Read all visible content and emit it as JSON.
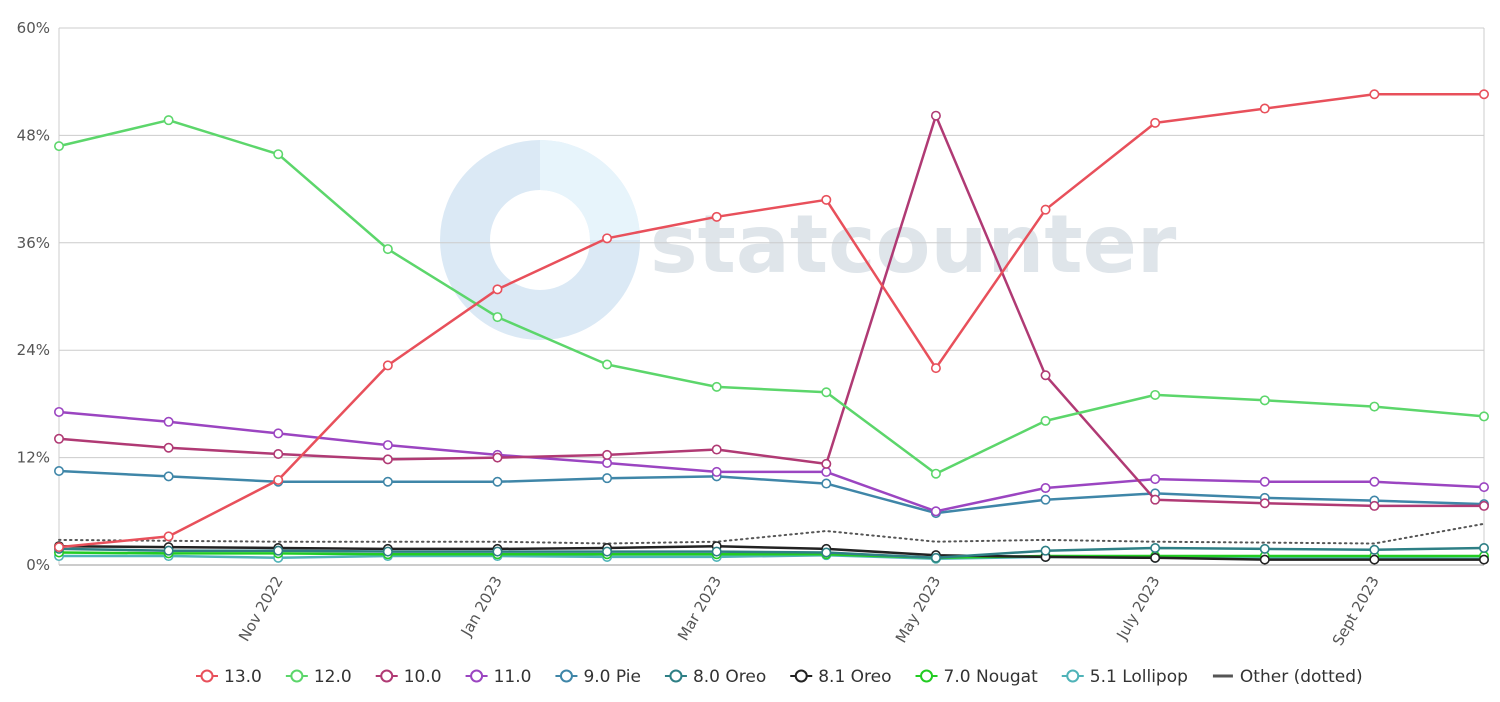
{
  "chart_data": {
    "type": "line",
    "title": "",
    "xlabel": "",
    "ylabel": "",
    "watermark": "statcounter",
    "ylim": [
      0,
      60
    ],
    "y_ticks": [
      "0%",
      "12%",
      "24%",
      "36%",
      "48%",
      "60%"
    ],
    "x": [
      "Sep 2022",
      "Oct 2022",
      "Nov 2022",
      "Dec 2022",
      "Jan 2023",
      "Feb 2023",
      "Mar 2023",
      "Apr 2023",
      "May 2023",
      "Jun 2023",
      "July 2023",
      "Aug 2023",
      "Sept 2023",
      "Oct 2023"
    ],
    "x_tick_labels": [
      {
        "index": 2,
        "label": "Nov 2022"
      },
      {
        "index": 4,
        "label": "Jan 2023"
      },
      {
        "index": 6,
        "label": "Mar 2023"
      },
      {
        "index": 8,
        "label": "May 2023"
      },
      {
        "index": 10,
        "label": "July 2023"
      },
      {
        "index": 12,
        "label": "Sept 2023"
      }
    ],
    "legend_position": "bottom",
    "grid": true,
    "series": [
      {
        "name": "13.0",
        "color": "#e8505b",
        "dotted": false,
        "values": [
          2.0,
          3.2,
          9.5,
          22.3,
          30.8,
          36.5,
          38.9,
          40.8,
          22.0,
          39.7,
          49.4,
          51.0,
          52.6,
          52.6
        ]
      },
      {
        "name": "12.0",
        "color": "#5cd66b",
        "dotted": false,
        "values": [
          46.8,
          49.7,
          45.9,
          35.3,
          27.7,
          22.4,
          19.9,
          19.3,
          10.2,
          16.1,
          19.0,
          18.4,
          17.7,
          16.6
        ]
      },
      {
        "name": "10.0",
        "color": "#b03a74",
        "dotted": false,
        "values": [
          14.1,
          13.1,
          12.4,
          11.8,
          12.0,
          12.3,
          12.9,
          11.3,
          50.2,
          21.2,
          7.3,
          6.9,
          6.6,
          6.6
        ]
      },
      {
        "name": "11.0",
        "color": "#9b45c1",
        "dotted": false,
        "values": [
          17.1,
          16.0,
          14.7,
          13.4,
          12.3,
          11.4,
          10.4,
          10.4,
          6.0,
          8.6,
          9.6,
          9.3,
          9.3,
          8.7
        ]
      },
      {
        "name": "9.0 Pie",
        "color": "#3f86a8",
        "dotted": false,
        "values": [
          10.5,
          9.9,
          9.3,
          9.3,
          9.3,
          9.7,
          9.9,
          9.1,
          5.8,
          7.3,
          8.0,
          7.5,
          7.2,
          6.8
        ]
      },
      {
        "name": "8.0 Oreo",
        "color": "#2e7f85",
        "dotted": false,
        "values": [
          1.8,
          1.6,
          1.6,
          1.5,
          1.5,
          1.5,
          1.5,
          1.4,
          0.8,
          1.6,
          1.9,
          1.8,
          1.7,
          1.9
        ]
      },
      {
        "name": "8.1 Oreo",
        "color": "#222222",
        "dotted": false,
        "values": [
          2.1,
          2.0,
          1.9,
          1.8,
          1.8,
          1.9,
          2.1,
          1.8,
          1.1,
          0.9,
          0.8,
          0.6,
          0.6,
          0.6
        ]
      },
      {
        "name": "7.0 Nougat",
        "color": "#22cc22",
        "dotted": false,
        "values": [
          1.4,
          1.3,
          1.3,
          1.2,
          1.2,
          1.2,
          1.2,
          1.2,
          0.8,
          1.0,
          1.0,
          1.0,
          1.0,
          1.0
        ]
      },
      {
        "name": "5.1 Lollipop",
        "color": "#4fb3b8",
        "dotted": false,
        "values": [
          1.0,
          1.0,
          0.8,
          1.0,
          1.0,
          0.9,
          0.9,
          1.1,
          0.7,
          0.9,
          0.8,
          0.8,
          0.8,
          0.7
        ]
      },
      {
        "name": "Other (dotted)",
        "color": "#555555",
        "dotted": true,
        "values": [
          2.8,
          2.7,
          2.6,
          2.6,
          2.6,
          2.4,
          2.6,
          3.8,
          2.6,
          2.8,
          2.6,
          2.5,
          2.4,
          4.6
        ]
      }
    ]
  }
}
